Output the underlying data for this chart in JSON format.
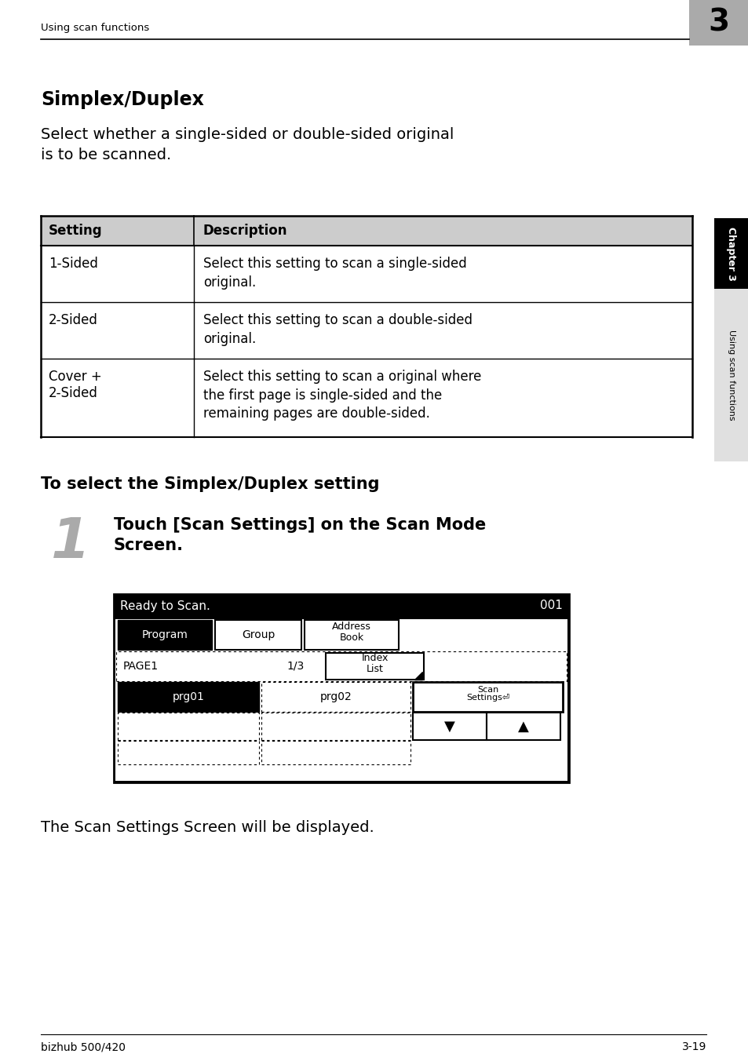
{
  "bg_color": "#ffffff",
  "header_text": "Using scan functions",
  "chapter_number": "3",
  "chapter_tab_color": "#aaaaaa",
  "title": "Simplex/Duplex",
  "intro_text": "Select whether a single-sided or double-sided original\nis to be scanned.",
  "table_header": [
    "Setting",
    "Description"
  ],
  "table_rows": [
    [
      "1-Sided",
      "Select this setting to scan a single-sided\noriginal."
    ],
    [
      "2-Sided",
      "Select this setting to scan a double-sided\noriginal."
    ],
    [
      "Cover +\n2-Sided",
      "Select this setting to scan a original where\nthe first page is single-sided and the\nremaining pages are double-sided."
    ]
  ],
  "table_header_bg": "#cccccc",
  "section_heading": "To select the Simplex/Duplex setting",
  "step_number": "1",
  "step_text": "Touch [Scan Settings] on the Scan Mode\nScreen.",
  "footer_left": "bizhub 500/420",
  "footer_right": "3-19",
  "screen_title": "Ready to Scan.",
  "screen_number": "001",
  "result_text": "The Scan Settings Screen will be displayed."
}
